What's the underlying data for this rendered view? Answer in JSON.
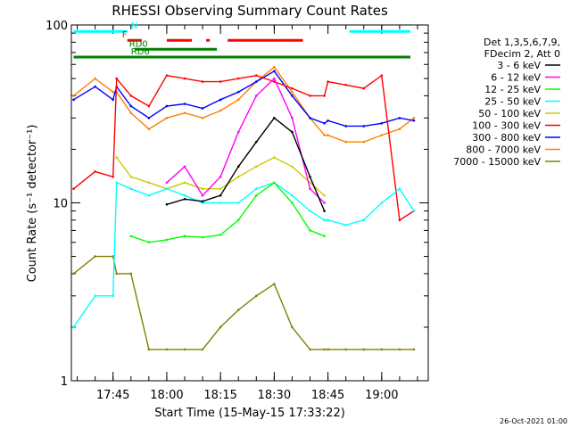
{
  "chart_data": {
    "type": "line",
    "title": "RHESSI Observing Summary Count Rates",
    "xlabel": "Start Time (15-May-15 17:33:22)",
    "ylabel": "Count Rate (s⁻¹ detector⁻¹)",
    "y_scale": "log",
    "ylim": [
      1,
      100
    ],
    "yticks": [
      {
        "value": 1,
        "label": "1"
      },
      {
        "value": 10,
        "label": "10"
      },
      {
        "value": 100,
        "label": "100"
      }
    ],
    "xlim": [
      "17:33:22",
      "19:13:00"
    ],
    "xticks": [
      "17:45",
      "18:00",
      "18:15",
      "18:30",
      "18:45",
      "19:00"
    ],
    "x": [
      "17:34",
      "17:40",
      "17:45",
      "17:46",
      "17:50",
      "17:55",
      "18:00",
      "18:05",
      "18:10",
      "18:15",
      "18:20",
      "18:25",
      "18:30",
      "18:35",
      "18:40",
      "18:44",
      "18:45",
      "18:50",
      "18:55",
      "19:00",
      "19:05",
      "19:09"
    ],
    "series": [
      {
        "name": "3 - 6 keV",
        "color": "#000000",
        "values": [
          null,
          null,
          null,
          null,
          null,
          null,
          9.8,
          10.5,
          10.2,
          11,
          16,
          22,
          30,
          25,
          14,
          9,
          null,
          null,
          null,
          null,
          null,
          null
        ]
      },
      {
        "name": "6 - 12 keV",
        "color": "#ff00ff",
        "values": [
          null,
          null,
          null,
          null,
          null,
          null,
          13,
          16,
          11,
          14,
          25,
          40,
          50,
          30,
          12,
          10,
          null,
          null,
          null,
          null,
          null,
          null
        ]
      },
      {
        "name": "12 - 25 keV",
        "color": "#00ff00",
        "values": [
          null,
          null,
          null,
          null,
          6.5,
          6,
          6.2,
          6.5,
          6.4,
          6.6,
          8,
          11,
          13,
          10,
          7,
          6.5,
          null,
          null,
          null,
          null,
          null,
          null
        ]
      },
      {
        "name": "25 - 50 keV",
        "color": "#00ffff",
        "values": [
          2,
          3,
          3,
          13,
          12,
          11,
          12,
          11,
          10,
          10,
          10,
          12,
          13,
          11,
          9,
          8,
          8,
          7.5,
          8,
          10,
          12,
          9
        ]
      },
      {
        "name": "50 - 100 keV",
        "color": "#cccc00",
        "values": [
          null,
          null,
          null,
          18,
          14,
          13,
          12,
          13,
          12,
          12,
          14,
          16,
          18,
          16,
          13,
          11,
          null,
          null,
          null,
          null,
          null,
          null
        ]
      },
      {
        "name": "100 - 300 keV",
        "color": "#ff0000",
        "values": [
          12,
          15,
          14,
          50,
          40,
          35,
          52,
          50,
          48,
          48,
          50,
          52,
          48,
          44,
          40,
          40,
          48,
          46,
          44,
          52,
          8,
          9
        ]
      },
      {
        "name": "300 - 800 keV",
        "color": "#0000ff",
        "values": [
          38,
          45,
          38,
          45,
          35,
          30,
          35,
          36,
          34,
          38,
          42,
          48,
          55,
          40,
          30,
          28,
          29,
          27,
          27,
          28,
          30,
          29
        ]
      },
      {
        "name": "800 - 7000 keV",
        "color": "#ff8000",
        "values": [
          40,
          50,
          42,
          42,
          32,
          26,
          30,
          32,
          30,
          33,
          38,
          48,
          58,
          42,
          30,
          24,
          24,
          22,
          22,
          24,
          26,
          30
        ]
      },
      {
        "name": "7000 - 15000 keV",
        "color": "#808000",
        "values": [
          4,
          5,
          5,
          4,
          4,
          1.5,
          1.5,
          1.5,
          1.5,
          2,
          2.5,
          3,
          3.5,
          2,
          1.5,
          1.5,
          1.5,
          1.5,
          1.5,
          1.5,
          1.5,
          1.5
        ]
      }
    ],
    "flag_bars": [
      {
        "label": "N",
        "color": "#00ffff",
        "y_value": 92,
        "segments": [
          [
            "17:34",
            "17:49"
          ],
          [
            "18:51",
            "19:08"
          ]
        ]
      },
      {
        "label": "F",
        "color": "#ff0000",
        "y_value": 82,
        "segments": [
          [
            "17:49",
            "17:53"
          ],
          [
            "18:00",
            "18:07"
          ],
          [
            "18:11",
            "18:12"
          ],
          [
            "18:17",
            "18:38"
          ]
        ]
      },
      {
        "label": "RD0",
        "color": "#008000",
        "y_value": 73,
        "segments": [
          [
            "17:51",
            "18:14"
          ]
        ]
      },
      {
        "label": "RD6",
        "color": "#008000",
        "y_value": 66,
        "segments": [
          [
            "17:34",
            "19:08"
          ]
        ]
      }
    ],
    "legend": {
      "position": "right",
      "header": [
        "Det 1,3,5,6,7,9,",
        "FDecim 2, Att 0"
      ]
    },
    "timestamp": "26-Oct-2021 01:00"
  }
}
